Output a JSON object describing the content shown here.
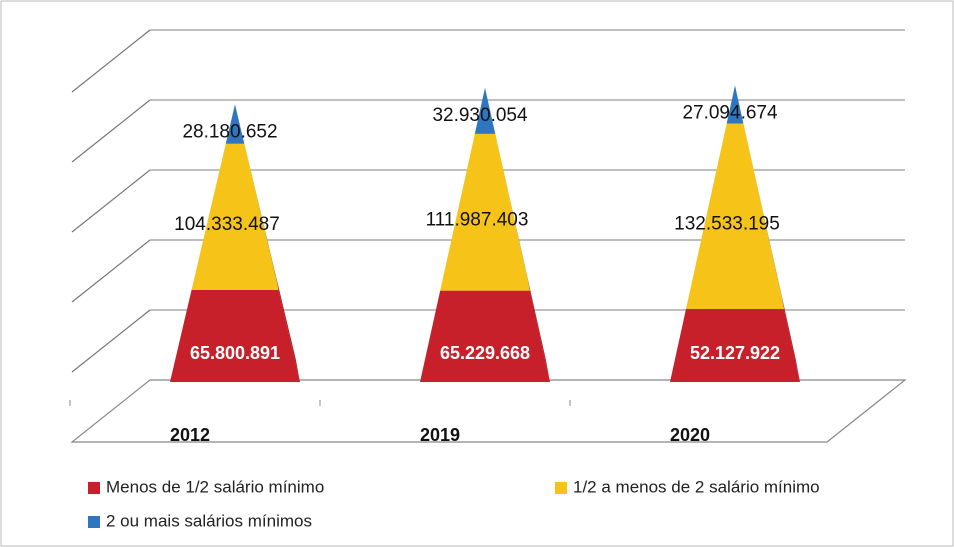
{
  "chart_data": {
    "type": "pyramid_stacked",
    "categories": [
      "2012",
      "2019",
      "2020"
    ],
    "series": [
      {
        "name": "Menos de 1/2 salário mínimo",
        "color": "#c8202a",
        "values": [
          65800891,
          65229668,
          52127922
        ],
        "value_labels": [
          "65.800.891",
          "65.229.668",
          "52.127.922"
        ]
      },
      {
        "name": "1/2 a menos de 2 salário mínimo",
        "color": "#f6c418",
        "values": [
          104333487,
          111987403,
          132533195
        ],
        "value_labels": [
          "104.333.487",
          "111.987.403",
          "132.533.195"
        ]
      },
      {
        "name": "2 ou mais salários mínimos",
        "color": "#2f76c0",
        "values": [
          28180652,
          32930054,
          27094674
        ],
        "value_labels": [
          "28.180.652",
          "32.930.054",
          "27.094.674"
        ]
      }
    ],
    "ylim": [
      0,
      250000000
    ],
    "yticks": [
      0,
      50000000,
      100000000,
      150000000,
      200000000,
      250000000
    ],
    "grid": true
  }
}
